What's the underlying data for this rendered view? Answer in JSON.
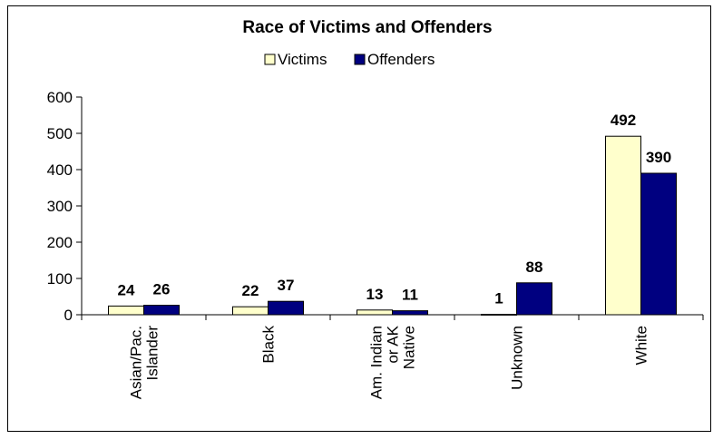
{
  "chart_data": {
    "type": "bar",
    "title": "Race of Victims and Offenders",
    "categories": [
      [
        "Asian/Pac.",
        "Islander"
      ],
      [
        "Black"
      ],
      [
        "Am. Indian",
        "or AK",
        "Native"
      ],
      [
        "Unknown"
      ],
      [
        "White"
      ]
    ],
    "series": [
      {
        "name": "Victims",
        "values": [
          24,
          22,
          13,
          1,
          492
        ],
        "color": "#ffffcc"
      },
      {
        "name": "Offenders",
        "values": [
          26,
          37,
          11,
          88,
          390
        ],
        "color": "#000080"
      }
    ],
    "ylim": [
      0,
      600
    ],
    "yticks": [
      0,
      100,
      200,
      300,
      400,
      500,
      600
    ],
    "legend_position": "top",
    "grid": false
  }
}
